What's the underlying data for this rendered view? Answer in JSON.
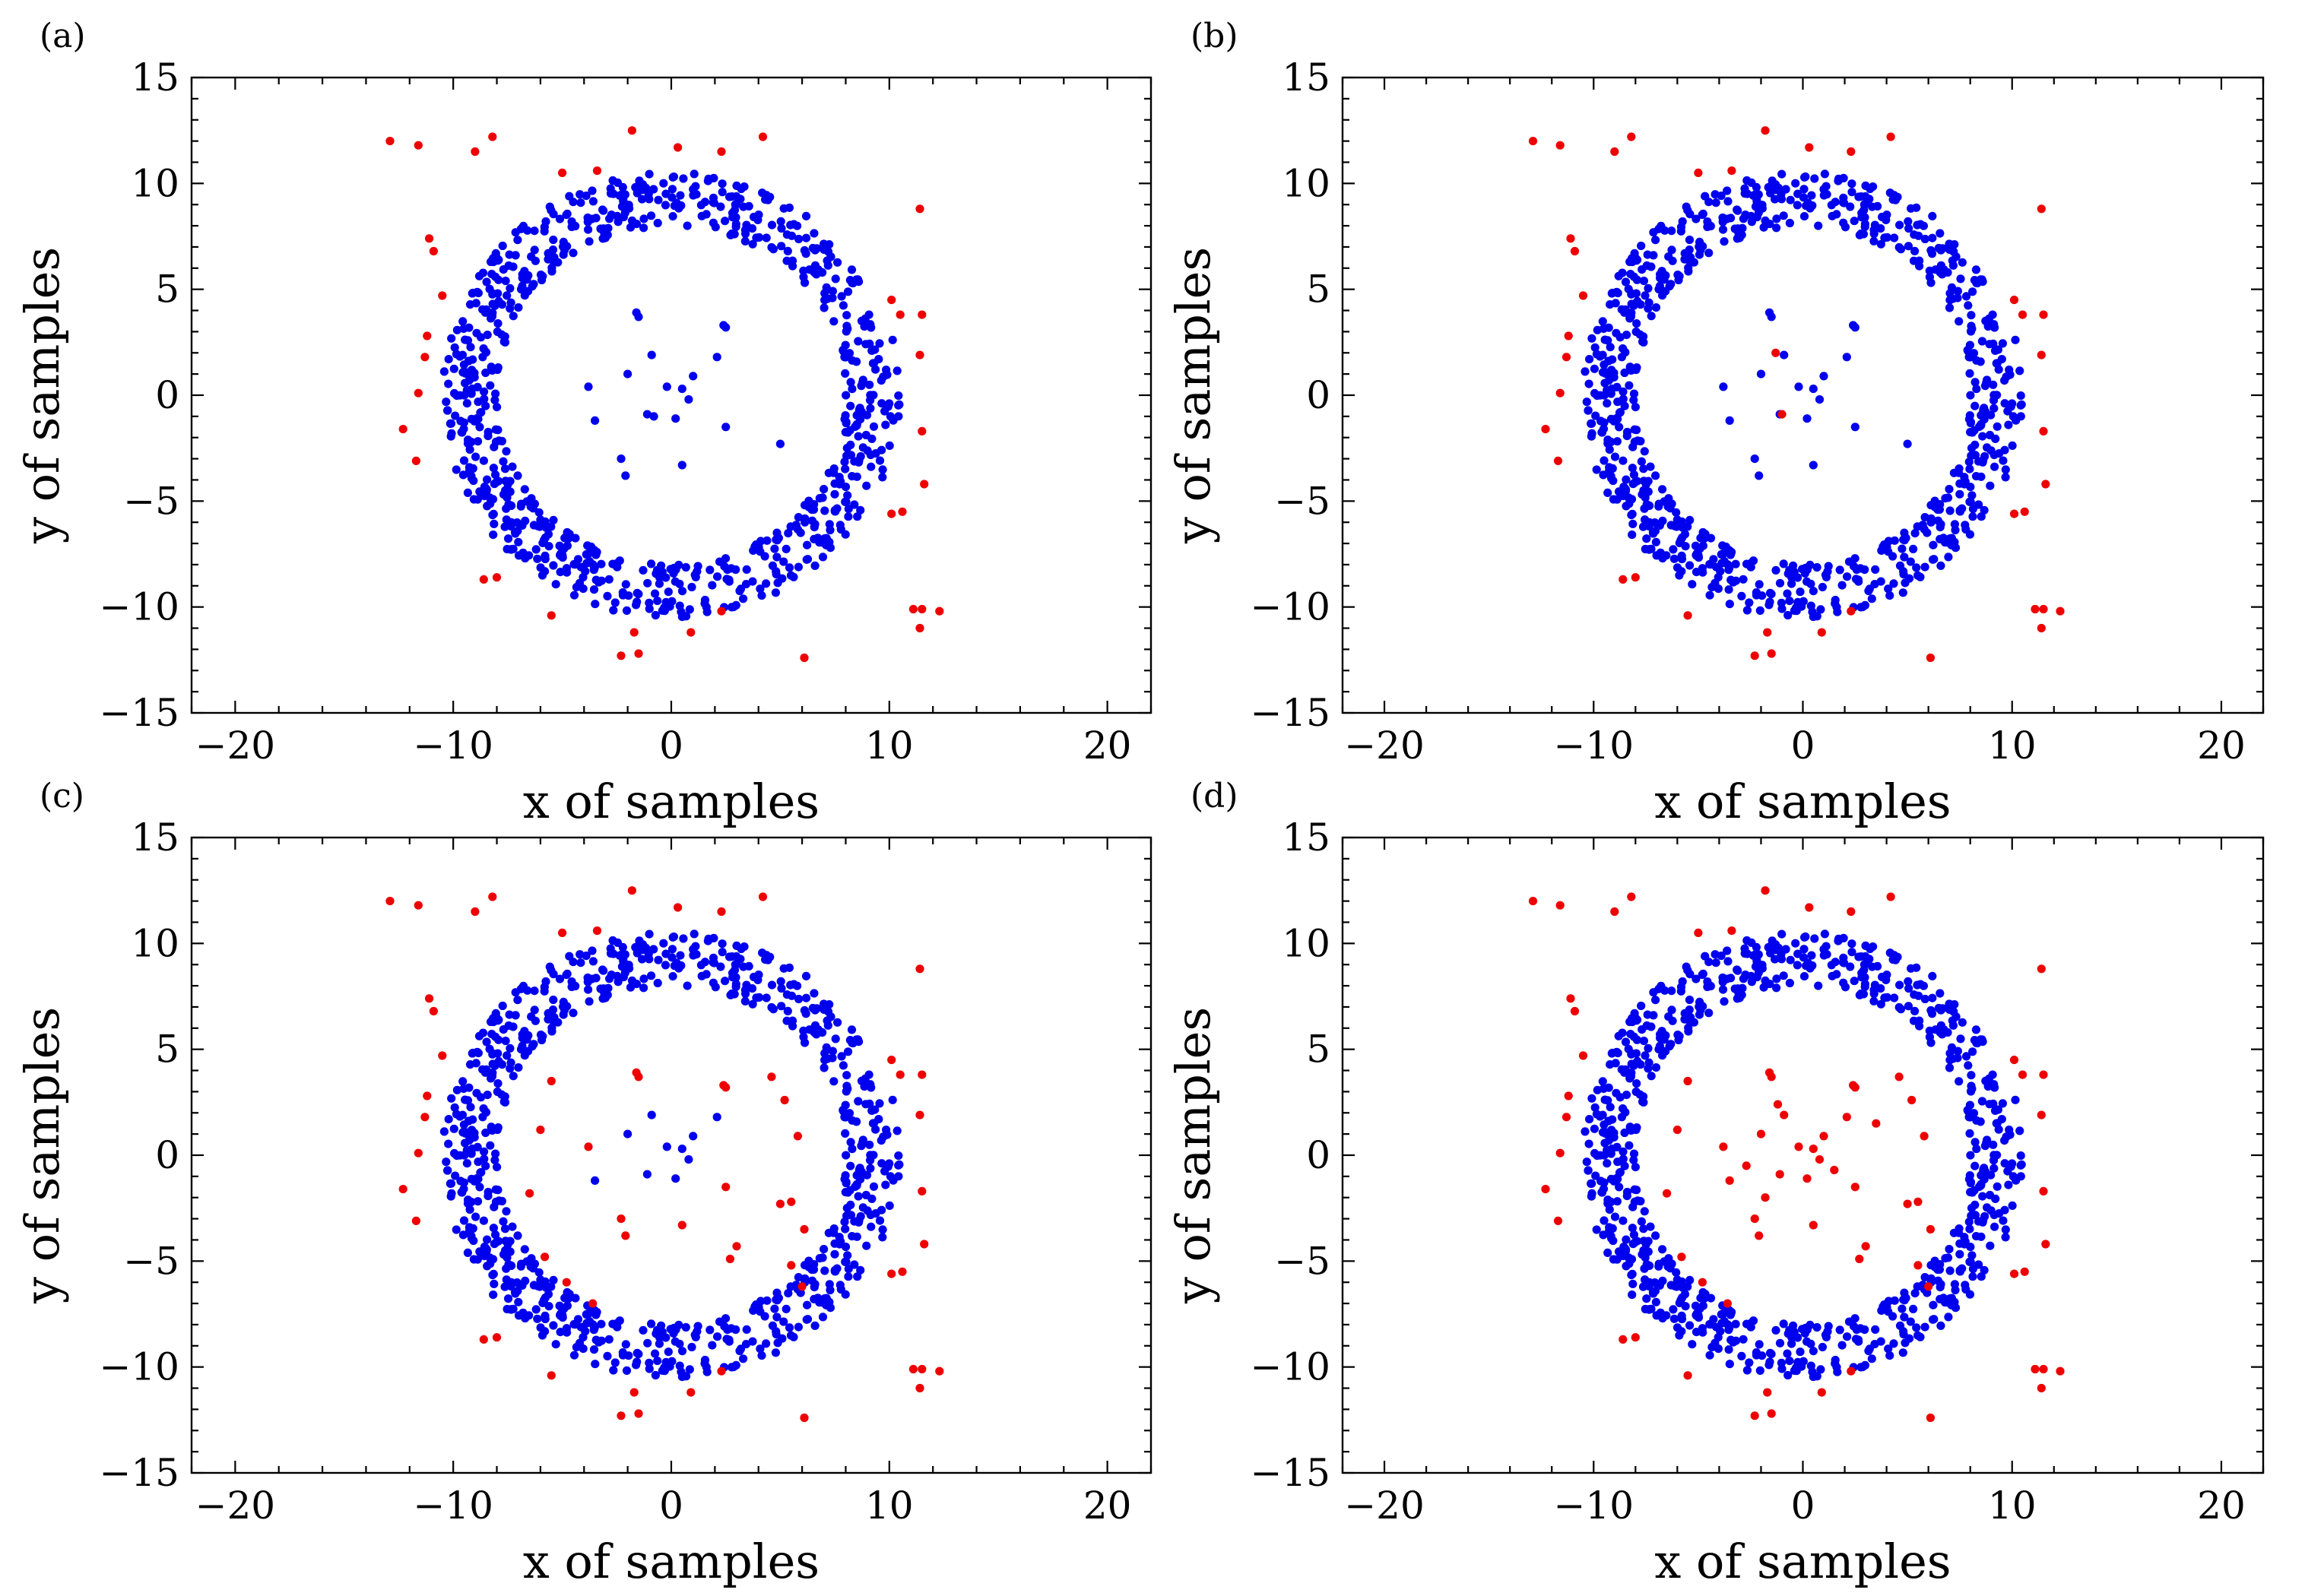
{
  "chart_data": [
    {
      "panel": "(a)",
      "type": "scatter",
      "xlabel": "x of samples",
      "ylabel": "y of samples",
      "xlim": [
        -22,
        22
      ],
      "ylim": [
        -15,
        15
      ],
      "xticks": [
        -20,
        -10,
        0,
        10,
        20
      ],
      "yticks": [
        -15,
        -10,
        -5,
        0,
        5,
        10,
        15
      ],
      "xtick_labels": [
        "−20",
        "−10",
        "0",
        "10",
        "20"
      ],
      "ytick_labels": [
        "−15",
        "−10",
        "−5",
        "0",
        "5",
        "10",
        "15"
      ],
      "grid": false,
      "inlier_color": "#0000ee",
      "outlier_color": "#ee0000",
      "ring": {
        "count": 820,
        "center": [
          0,
          0
        ],
        "radius_range": [
          8.0,
          10.5
        ],
        "approximate": true
      },
      "inner_points": [
        [
          -1.6,
          3.9
        ],
        [
          -1.5,
          3.7
        ],
        [
          2.5,
          3.2
        ],
        [
          2.4,
          3.3
        ],
        [
          -0.9,
          1.9
        ],
        [
          2.1,
          1.8
        ],
        [
          -2.0,
          1.0
        ],
        [
          1.0,
          0.9
        ],
        [
          -3.8,
          0.4
        ],
        [
          -0.2,
          0.4
        ],
        [
          0.5,
          0.3
        ],
        [
          0.8,
          -0.2
        ],
        [
          -1.1,
          -0.9
        ],
        [
          -0.8,
          -1.0
        ],
        [
          0.2,
          -1.1
        ],
        [
          -3.5,
          -1.2
        ],
        [
          -2.3,
          -3.0
        ],
        [
          0.5,
          -3.3
        ],
        [
          -2.1,
          -3.8
        ],
        [
          2.5,
          -1.5
        ],
        [
          5.0,
          -2.3
        ]
      ],
      "outer_points": [
        [
          -11.6,
          11.8
        ],
        [
          -12.9,
          12.0
        ],
        [
          -8.2,
          12.2
        ],
        [
          -9.0,
          11.5
        ],
        [
          -1.8,
          12.5
        ],
        [
          0.3,
          11.7
        ],
        [
          2.3,
          11.5
        ],
        [
          4.2,
          12.2
        ],
        [
          -5.0,
          10.5
        ],
        [
          -3.4,
          10.6
        ],
        [
          11.4,
          8.8
        ],
        [
          -11.1,
          7.4
        ],
        [
          -10.9,
          6.8
        ],
        [
          -10.5,
          4.7
        ],
        [
          10.1,
          4.5
        ],
        [
          11.5,
          3.8
        ],
        [
          10.5,
          3.8
        ],
        [
          -11.2,
          2.8
        ],
        [
          -11.3,
          1.8
        ],
        [
          11.4,
          1.9
        ],
        [
          -11.6,
          0.1
        ],
        [
          -12.3,
          -1.6
        ],
        [
          11.5,
          -1.7
        ],
        [
          -11.7,
          -3.1
        ],
        [
          11.6,
          -4.2
        ],
        [
          10.1,
          -5.6
        ],
        [
          10.6,
          -5.5
        ],
        [
          -8.0,
          -8.6
        ],
        [
          -8.6,
          -8.7
        ],
        [
          -5.5,
          -10.4
        ],
        [
          -1.7,
          -11.2
        ],
        [
          2.3,
          -10.2
        ],
        [
          -2.3,
          -12.3
        ],
        [
          -1.5,
          -12.2
        ],
        [
          0.9,
          -11.2
        ],
        [
          6.1,
          -12.4
        ],
        [
          11.1,
          -10.1
        ],
        [
          11.4,
          -11.0
        ],
        [
          12.3,
          -10.2
        ],
        [
          11.5,
          -10.1
        ]
      ]
    },
    {
      "panel": "(b)",
      "type": "scatter",
      "xlabel": "x of samples",
      "ylabel": "y of samples",
      "xlim": [
        -22,
        22
      ],
      "ylim": [
        -15,
        15
      ],
      "xticks": [
        -20,
        -10,
        0,
        10,
        20
      ],
      "yticks": [
        -15,
        -10,
        -5,
        0,
        5,
        10,
        15
      ],
      "xtick_labels": [
        "−20",
        "−10",
        "0",
        "10",
        "20"
      ],
      "ytick_labels": [
        "−15",
        "−10",
        "−5",
        "0",
        "5",
        "10",
        "15"
      ],
      "grid": false,
      "inlier_color": "#0000ee",
      "outlier_color": "#ee0000",
      "ring": {
        "count": 820,
        "center": [
          0,
          0
        ],
        "radius_range": [
          8.0,
          10.5
        ],
        "approximate": true
      },
      "inner_points": [
        [
          -1.6,
          3.9
        ],
        [
          -1.5,
          3.7
        ],
        [
          2.5,
          3.2
        ],
        [
          2.4,
          3.3
        ],
        [
          -0.9,
          1.9
        ],
        [
          2.1,
          1.8
        ],
        [
          -2.0,
          1.0
        ],
        [
          1.0,
          0.9
        ],
        [
          -3.8,
          0.4
        ],
        [
          -0.2,
          0.4
        ],
        [
          0.5,
          0.3
        ],
        [
          0.8,
          -0.2
        ],
        [
          -1.1,
          -0.9
        ],
        [
          0.2,
          -1.1
        ],
        [
          -3.5,
          -1.2
        ],
        [
          -2.3,
          -3.0
        ],
        [
          0.5,
          -3.3
        ],
        [
          -2.1,
          -3.8
        ],
        [
          2.5,
          -1.5
        ],
        [
          5.0,
          -2.3
        ]
      ],
      "outer_points": [
        [
          -11.6,
          11.8
        ],
        [
          -12.9,
          12.0
        ],
        [
          -8.2,
          12.2
        ],
        [
          -9.0,
          11.5
        ],
        [
          -1.8,
          12.5
        ],
        [
          0.3,
          11.7
        ],
        [
          2.3,
          11.5
        ],
        [
          4.2,
          12.2
        ],
        [
          -5.0,
          10.5
        ],
        [
          -3.4,
          10.6
        ],
        [
          11.4,
          8.8
        ],
        [
          -11.1,
          7.4
        ],
        [
          -10.9,
          6.8
        ],
        [
          -10.5,
          4.7
        ],
        [
          10.1,
          4.5
        ],
        [
          11.5,
          3.8
        ],
        [
          10.5,
          3.8
        ],
        [
          -11.2,
          2.8
        ],
        [
          -11.3,
          1.8
        ],
        [
          11.4,
          1.9
        ],
        [
          -11.6,
          0.1
        ],
        [
          -12.3,
          -1.6
        ],
        [
          11.5,
          -1.7
        ],
        [
          -11.7,
          -3.1
        ],
        [
          11.6,
          -4.2
        ],
        [
          10.1,
          -5.6
        ],
        [
          10.6,
          -5.5
        ],
        [
          -8.0,
          -8.6
        ],
        [
          -8.6,
          -8.7
        ],
        [
          -5.5,
          -10.4
        ],
        [
          -1.7,
          -11.2
        ],
        [
          2.3,
          -10.2
        ],
        [
          -2.3,
          -12.3
        ],
        [
          -1.5,
          -12.2
        ],
        [
          0.9,
          -11.2
        ],
        [
          6.1,
          -12.4
        ],
        [
          11.1,
          -10.1
        ],
        [
          11.4,
          -11.0
        ],
        [
          12.3,
          -10.2
        ],
        [
          11.5,
          -10.1
        ],
        [
          -1.0,
          -0.9
        ],
        [
          -1.3,
          2.0
        ]
      ]
    },
    {
      "panel": "(c)",
      "type": "scatter",
      "xlabel": "x of samples",
      "ylabel": "y of samples",
      "xlim": [
        -22,
        22
      ],
      "ylim": [
        -15,
        15
      ],
      "xticks": [
        -20,
        -10,
        0,
        10,
        20
      ],
      "yticks": [
        -15,
        -10,
        -5,
        0,
        5,
        10,
        15
      ],
      "xtick_labels": [
        "−20",
        "−10",
        "0",
        "10",
        "20"
      ],
      "ytick_labels": [
        "−15",
        "−10",
        "−5",
        "0",
        "5",
        "10",
        "15"
      ],
      "grid": false,
      "inlier_color": "#0000ee",
      "outlier_color": "#ee0000",
      "ring": {
        "count": 820,
        "center": [
          0,
          0
        ],
        "radius_range": [
          8.0,
          10.5
        ],
        "approximate": true
      },
      "inner_points": [
        [
          -0.9,
          1.9
        ],
        [
          2.1,
          1.8
        ],
        [
          -2.0,
          1.0
        ],
        [
          1.0,
          0.9
        ],
        [
          -0.2,
          0.4
        ],
        [
          0.5,
          0.3
        ],
        [
          0.8,
          -0.2
        ],
        [
          -1.1,
          -0.9
        ],
        [
          0.2,
          -1.1
        ],
        [
          -3.5,
          -1.2
        ]
      ],
      "outer_points": [
        [
          -11.6,
          11.8
        ],
        [
          -12.9,
          12.0
        ],
        [
          -8.2,
          12.2
        ],
        [
          -9.0,
          11.5
        ],
        [
          -1.8,
          12.5
        ],
        [
          0.3,
          11.7
        ],
        [
          2.3,
          11.5
        ],
        [
          4.2,
          12.2
        ],
        [
          -5.0,
          10.5
        ],
        [
          -3.4,
          10.6
        ],
        [
          11.4,
          8.8
        ],
        [
          -11.1,
          7.4
        ],
        [
          -10.9,
          6.8
        ],
        [
          -10.5,
          4.7
        ],
        [
          10.1,
          4.5
        ],
        [
          11.5,
          3.8
        ],
        [
          10.5,
          3.8
        ],
        [
          -11.2,
          2.8
        ],
        [
          -11.3,
          1.8
        ],
        [
          11.4,
          1.9
        ],
        [
          -11.6,
          0.1
        ],
        [
          -12.3,
          -1.6
        ],
        [
          11.5,
          -1.7
        ],
        [
          -11.7,
          -3.1
        ],
        [
          11.6,
          -4.2
        ],
        [
          10.1,
          -5.6
        ],
        [
          10.6,
          -5.5
        ],
        [
          -8.0,
          -8.6
        ],
        [
          -8.6,
          -8.7
        ],
        [
          -5.5,
          -10.4
        ],
        [
          -1.7,
          -11.2
        ],
        [
          2.3,
          -10.2
        ],
        [
          -2.3,
          -12.3
        ],
        [
          -1.5,
          -12.2
        ],
        [
          0.9,
          -11.2
        ],
        [
          6.1,
          -12.4
        ],
        [
          11.1,
          -10.1
        ],
        [
          11.4,
          -11.0
        ],
        [
          12.3,
          -10.2
        ],
        [
          11.5,
          -10.1
        ],
        [
          -1.6,
          3.9
        ],
        [
          -1.5,
          3.7
        ],
        [
          2.5,
          3.2
        ],
        [
          2.4,
          3.3
        ],
        [
          -3.8,
          0.4
        ],
        [
          -2.3,
          -3.0
        ],
        [
          0.5,
          -3.3
        ],
        [
          -2.1,
          -3.8
        ],
        [
          2.5,
          -1.5
        ],
        [
          5.0,
          -2.3
        ],
        [
          -5.5,
          3.5
        ],
        [
          -6.0,
          1.2
        ],
        [
          -6.5,
          -1.8
        ],
        [
          -5.8,
          -4.8
        ],
        [
          4.6,
          3.7
        ],
        [
          5.2,
          2.6
        ],
        [
          5.8,
          0.9
        ],
        [
          5.5,
          -2.2
        ],
        [
          6.1,
          -3.5
        ],
        [
          2.7,
          -4.9
        ],
        [
          3.0,
          -4.3
        ],
        [
          -4.8,
          -6.0
        ],
        [
          -3.6,
          -7.0
        ],
        [
          5.5,
          -5.2
        ],
        [
          6.0,
          -6.2
        ]
      ]
    },
    {
      "panel": "(d)",
      "type": "scatter",
      "xlabel": "x of samples",
      "ylabel": "y of samples",
      "xlim": [
        -22,
        22
      ],
      "ylim": [
        -15,
        15
      ],
      "xticks": [
        -20,
        -10,
        0,
        10,
        20
      ],
      "yticks": [
        -15,
        -10,
        -5,
        0,
        5,
        10,
        15
      ],
      "xtick_labels": [
        "−20",
        "−10",
        "0",
        "10",
        "20"
      ],
      "ytick_labels": [
        "−15",
        "−10",
        "−5",
        "0",
        "5",
        "10",
        "15"
      ],
      "grid": false,
      "inlier_color": "#0000ee",
      "outlier_color": "#ee0000",
      "ring": {
        "count": 820,
        "center": [
          0,
          0
        ],
        "radius_range": [
          8.0,
          10.5
        ],
        "approximate": true
      },
      "inner_points": [],
      "outer_points": [
        [
          -11.6,
          11.8
        ],
        [
          -12.9,
          12.0
        ],
        [
          -8.2,
          12.2
        ],
        [
          -9.0,
          11.5
        ],
        [
          -1.8,
          12.5
        ],
        [
          0.3,
          11.7
        ],
        [
          2.3,
          11.5
        ],
        [
          4.2,
          12.2
        ],
        [
          -5.0,
          10.5
        ],
        [
          -3.4,
          10.6
        ],
        [
          11.4,
          8.8
        ],
        [
          -11.1,
          7.4
        ],
        [
          -10.9,
          6.8
        ],
        [
          -10.5,
          4.7
        ],
        [
          10.1,
          4.5
        ],
        [
          11.5,
          3.8
        ],
        [
          10.5,
          3.8
        ],
        [
          -11.2,
          2.8
        ],
        [
          -11.3,
          1.8
        ],
        [
          11.4,
          1.9
        ],
        [
          -11.6,
          0.1
        ],
        [
          -12.3,
          -1.6
        ],
        [
          11.5,
          -1.7
        ],
        [
          -11.7,
          -3.1
        ],
        [
          11.6,
          -4.2
        ],
        [
          10.1,
          -5.6
        ],
        [
          10.6,
          -5.5
        ],
        [
          -8.0,
          -8.6
        ],
        [
          -8.6,
          -8.7
        ],
        [
          -5.5,
          -10.4
        ],
        [
          -1.7,
          -11.2
        ],
        [
          2.3,
          -10.2
        ],
        [
          -2.3,
          -12.3
        ],
        [
          -1.5,
          -12.2
        ],
        [
          0.9,
          -11.2
        ],
        [
          6.1,
          -12.4
        ],
        [
          11.1,
          -10.1
        ],
        [
          11.4,
          -11.0
        ],
        [
          12.3,
          -10.2
        ],
        [
          11.5,
          -10.1
        ],
        [
          -1.6,
          3.9
        ],
        [
          -1.5,
          3.7
        ],
        [
          2.5,
          3.2
        ],
        [
          2.4,
          3.3
        ],
        [
          -0.9,
          1.9
        ],
        [
          2.1,
          1.8
        ],
        [
          -2.0,
          1.0
        ],
        [
          1.0,
          0.9
        ],
        [
          -3.8,
          0.4
        ],
        [
          -0.2,
          0.4
        ],
        [
          0.5,
          0.3
        ],
        [
          0.8,
          -0.2
        ],
        [
          -1.1,
          -0.9
        ],
        [
          0.2,
          -1.1
        ],
        [
          -3.5,
          -1.2
        ],
        [
          -2.3,
          -3.0
        ],
        [
          0.5,
          -3.3
        ],
        [
          -2.1,
          -3.8
        ],
        [
          2.5,
          -1.5
        ],
        [
          5.0,
          -2.3
        ],
        [
          -5.5,
          3.5
        ],
        [
          -6.0,
          1.2
        ],
        [
          -6.5,
          -1.8
        ],
        [
          -5.8,
          -4.8
        ],
        [
          4.6,
          3.7
        ],
        [
          5.2,
          2.6
        ],
        [
          5.8,
          0.9
        ],
        [
          5.5,
          -2.2
        ],
        [
          6.1,
          -3.5
        ],
        [
          2.7,
          -4.9
        ],
        [
          3.0,
          -4.3
        ],
        [
          -4.8,
          -6.0
        ],
        [
          -3.6,
          -7.0
        ],
        [
          5.5,
          -5.2
        ],
        [
          6.0,
          -6.2
        ],
        [
          -1.2,
          2.4
        ],
        [
          1.5,
          -0.7
        ],
        [
          -2.7,
          -0.5
        ],
        [
          3.5,
          1.5
        ],
        [
          -1.8,
          -2.0
        ]
      ]
    }
  ]
}
